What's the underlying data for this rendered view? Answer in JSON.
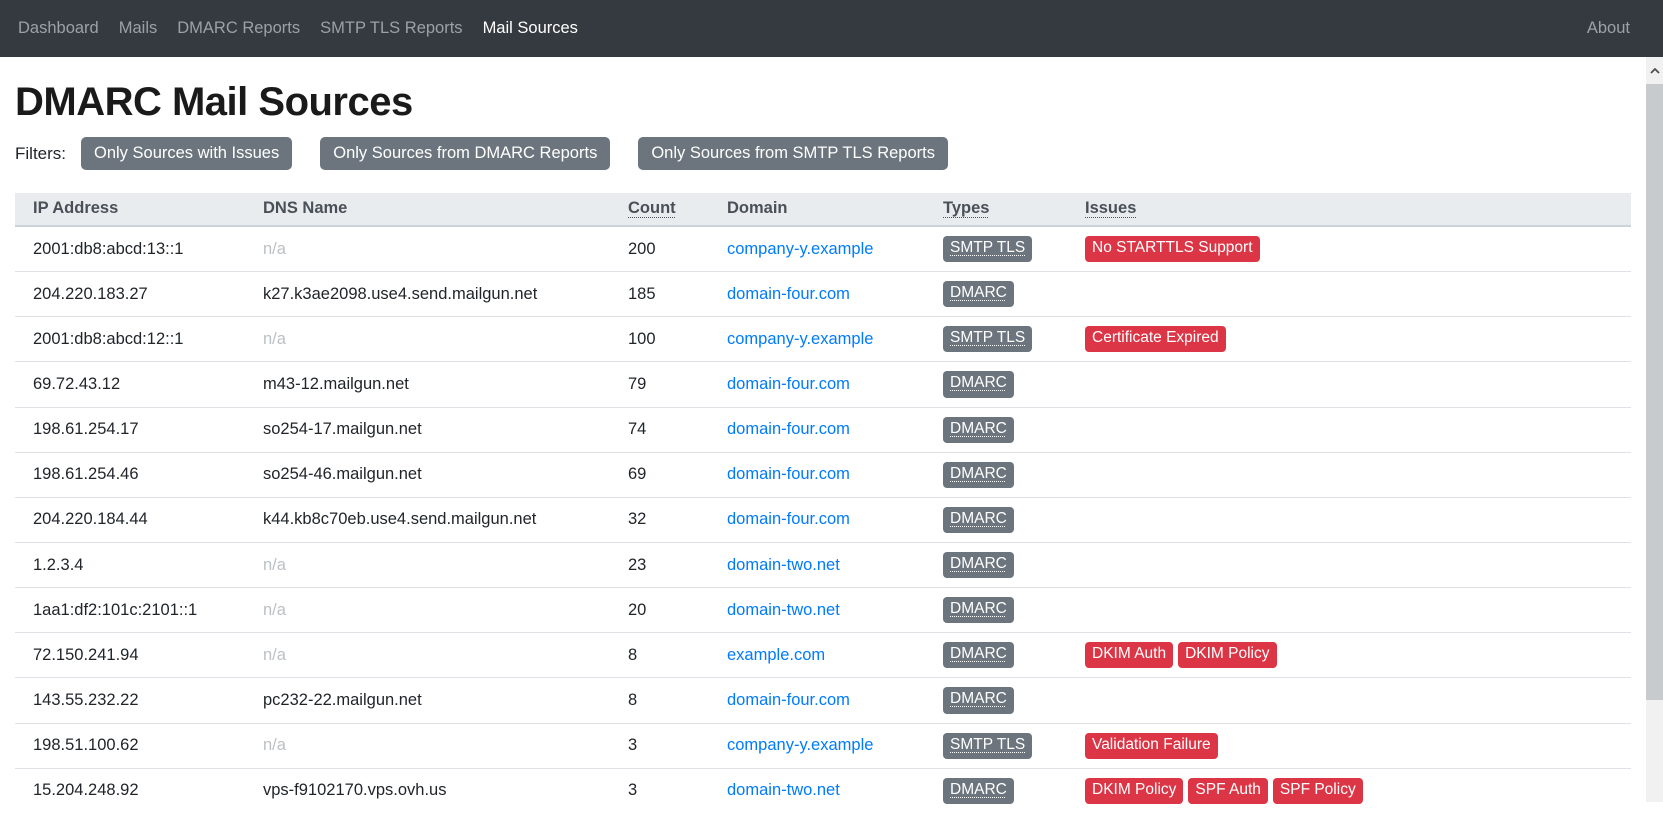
{
  "colors": {
    "navbar_bg": "#343a40",
    "nav_fg": "#9ba1a6",
    "btn_bg": "#6c757d",
    "thead_bg": "#e9ecef",
    "link": "#007bff",
    "badge_type_bg": "#6c757d",
    "badge_issue_bg": "#dc3545"
  },
  "navbar": {
    "items": [
      {
        "label": "Dashboard",
        "active": false
      },
      {
        "label": "Mails",
        "active": false
      },
      {
        "label": "DMARC Reports",
        "active": false
      },
      {
        "label": "SMTP TLS Reports",
        "active": false
      },
      {
        "label": "Mail Sources",
        "active": true
      }
    ],
    "right_item": "About"
  },
  "page": {
    "title": "DMARC Mail Sources"
  },
  "filters": {
    "label": "Filters:",
    "buttons": [
      "Only Sources with Issues",
      "Only Sources from DMARC Reports",
      "Only Sources from SMTP TLS Reports"
    ]
  },
  "table": {
    "columns": [
      {
        "label": "IP Address",
        "tooltip": false
      },
      {
        "label": "DNS Name",
        "tooltip": false
      },
      {
        "label": "Count",
        "tooltip": true
      },
      {
        "label": "Domain",
        "tooltip": false
      },
      {
        "label": "Types",
        "tooltip": true
      },
      {
        "label": "Issues",
        "tooltip": true
      }
    ],
    "rows": [
      {
        "ip": "2001:db8:abcd:13::1",
        "dns": "n/a",
        "count": "200",
        "domain": "company-y.example",
        "types": [
          "SMTP TLS"
        ],
        "issues": [
          "No STARTTLS Support"
        ]
      },
      {
        "ip": "204.220.183.27",
        "dns": "k27.k3ae2098.use4.send.mailgun.net",
        "count": "185",
        "domain": "domain-four.com",
        "types": [
          "DMARC"
        ],
        "issues": []
      },
      {
        "ip": "2001:db8:abcd:12::1",
        "dns": "n/a",
        "count": "100",
        "domain": "company-y.example",
        "types": [
          "SMTP TLS"
        ],
        "issues": [
          "Certificate Expired"
        ]
      },
      {
        "ip": "69.72.43.12",
        "dns": "m43-12.mailgun.net",
        "count": "79",
        "domain": "domain-four.com",
        "types": [
          "DMARC"
        ],
        "issues": []
      },
      {
        "ip": "198.61.254.17",
        "dns": "so254-17.mailgun.net",
        "count": "74",
        "domain": "domain-four.com",
        "types": [
          "DMARC"
        ],
        "issues": []
      },
      {
        "ip": "198.61.254.46",
        "dns": "so254-46.mailgun.net",
        "count": "69",
        "domain": "domain-four.com",
        "types": [
          "DMARC"
        ],
        "issues": []
      },
      {
        "ip": "204.220.184.44",
        "dns": "k44.kb8c70eb.use4.send.mailgun.net",
        "count": "32",
        "domain": "domain-four.com",
        "types": [
          "DMARC"
        ],
        "issues": []
      },
      {
        "ip": "1.2.3.4",
        "dns": "n/a",
        "count": "23",
        "domain": "domain-two.net",
        "types": [
          "DMARC"
        ],
        "issues": []
      },
      {
        "ip": "1aa1:df2:101c:2101::1",
        "dns": "n/a",
        "count": "20",
        "domain": "domain-two.net",
        "types": [
          "DMARC"
        ],
        "issues": []
      },
      {
        "ip": "72.150.241.94",
        "dns": "n/a",
        "count": "8",
        "domain": "example.com",
        "types": [
          "DMARC"
        ],
        "issues": [
          "DKIM Auth",
          "DKIM Policy"
        ]
      },
      {
        "ip": "143.55.232.22",
        "dns": "pc232-22.mailgun.net",
        "count": "8",
        "domain": "domain-four.com",
        "types": [
          "DMARC"
        ],
        "issues": []
      },
      {
        "ip": "198.51.100.62",
        "dns": "n/a",
        "count": "3",
        "domain": "company-y.example",
        "types": [
          "SMTP TLS"
        ],
        "issues": [
          "Validation Failure"
        ]
      },
      {
        "ip": "15.204.248.92",
        "dns": "vps-f9102170.vps.ovh.us",
        "count": "3",
        "domain": "domain-two.net",
        "types": [
          "DMARC"
        ],
        "issues": [
          "DKIM Policy",
          "SPF Auth",
          "SPF Policy"
        ]
      }
    ]
  }
}
